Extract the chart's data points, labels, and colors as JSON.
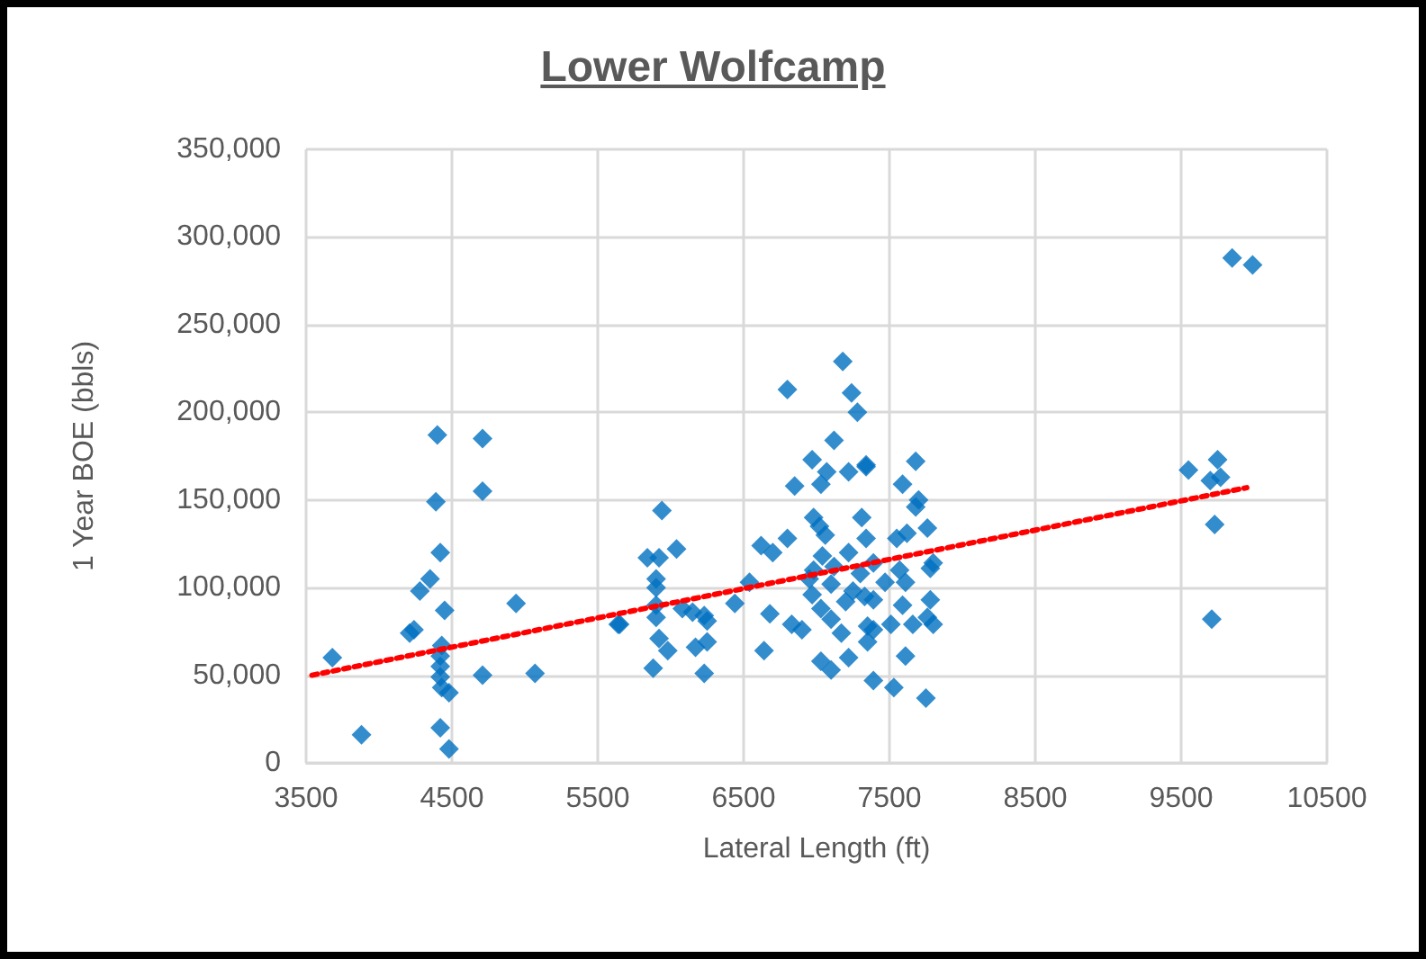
{
  "chart_data": {
    "type": "scatter",
    "title": "Lower Wolfcamp",
    "xlabel": "Lateral Length (ft)",
    "ylabel": "1 Year BOE (bbls)",
    "xlim": [
      3500,
      10500
    ],
    "xticks": [
      3500,
      4500,
      5500,
      6500,
      7500,
      8500,
      9500,
      10500
    ],
    "ylim": [
      0,
      350000
    ],
    "yticks": [
      {
        "value": 0,
        "label": "0"
      },
      {
        "value": 50000,
        "label": "50,000"
      },
      {
        "value": 100000,
        "label": "100,000"
      },
      {
        "value": 150000,
        "label": "150,000"
      },
      {
        "value": 200000,
        "label": "200,000"
      },
      {
        "value": 250000,
        "label": "250,000"
      },
      {
        "value": 300000,
        "label": "300,000"
      },
      {
        "value": 350000,
        "label": "350,000"
      }
    ],
    "grid": true,
    "marker": "diamond",
    "series": [
      {
        "color": "#0070c0",
        "x": [
          3680,
          3880,
          4400,
          4710,
          4710,
          4390,
          4420,
          4350,
          4280,
          4450,
          4940,
          4240,
          4210,
          4430,
          4420,
          4420,
          4420,
          4430,
          4480,
          4710,
          5070,
          4420,
          4480,
          5640,
          5940,
          5840,
          6040,
          5920,
          5900,
          5900,
          5650,
          5900,
          5900,
          6080,
          6230,
          6150,
          6250,
          5920,
          5980,
          5880,
          6170,
          6250,
          6230,
          6440,
          6540,
          6620,
          6700,
          6800,
          6680,
          6640,
          6800,
          6850,
          6970,
          7030,
          6830,
          6900,
          6950,
          6970,
          7180,
          7240,
          7280,
          7120,
          7340,
          7220,
          7070,
          6980,
          7020,
          7060,
          7310,
          7340,
          7040,
          7120,
          7220,
          7300,
          6980,
          7100,
          7250,
          7330,
          7030,
          7100,
          7200,
          7170,
          7350,
          7030,
          7100,
          7220,
          7680,
          7590,
          7700,
          7680,
          7340,
          7760,
          7620,
          7550,
          7780,
          7800,
          7570,
          7610,
          7470,
          7390,
          7780,
          7760,
          7800,
          7590,
          7660,
          7510,
          7390,
          7390,
          7350,
          7610,
          7390,
          7530,
          7750,
          9850,
          9990,
          9550,
          9750,
          9700,
          9770,
          9730,
          9710
        ],
        "values": [
          60000,
          16000,
          187000,
          185000,
          155000,
          149000,
          120000,
          105000,
          98000,
          87000,
          91000,
          76000,
          74000,
          67000,
          61000,
          55000,
          49000,
          43000,
          40000,
          50000,
          51000,
          20000,
          8000,
          79000,
          144000,
          117000,
          122000,
          117000,
          105000,
          100000,
          79000,
          90000,
          83000,
          88000,
          84000,
          86000,
          81000,
          71000,
          64000,
          54000,
          66000,
          69000,
          51000,
          91000,
          103000,
          124000,
          120000,
          128000,
          85000,
          64000,
          213000,
          158000,
          173000,
          159000,
          79000,
          76000,
          105000,
          96000,
          229000,
          211000,
          200000,
          184000,
          170000,
          166000,
          166000,
          140000,
          135000,
          130000,
          140000,
          128000,
          118000,
          112000,
          120000,
          108000,
          110000,
          102000,
          98000,
          95000,
          88000,
          82000,
          92000,
          74000,
          78000,
          58000,
          53000,
          60000,
          172000,
          159000,
          150000,
          146000,
          169000,
          134000,
          131000,
          128000,
          111000,
          114000,
          110000,
          103000,
          103000,
          114000,
          93000,
          83000,
          79000,
          90000,
          79000,
          79000,
          93000,
          76000,
          69000,
          61000,
          47000,
          43000,
          37000,
          288000,
          284000,
          167000,
          173000,
          161000,
          163000,
          136000,
          82000
        ]
      },
      {
        "type": "line",
        "color": "#ff0000",
        "marker": "none",
        "line_style": "dotted",
        "x": [
          3540,
          9950
        ],
        "values": [
          50000,
          157000
        ]
      }
    ]
  }
}
